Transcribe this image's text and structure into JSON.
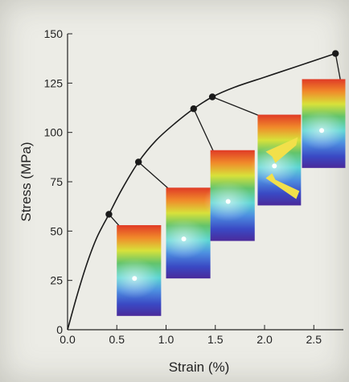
{
  "chart_data": {
    "type": "line",
    "title": "",
    "xlabel": "Strain (%)",
    "ylabel": "Stress (MPa)",
    "xlim": [
      0,
      2.8
    ],
    "ylim": [
      0,
      150
    ],
    "x_ticks": [
      "0.0",
      "0.5",
      "1.0",
      "1.5",
      "2.0",
      "2.5"
    ],
    "y_ticks": [
      "0",
      "25",
      "50",
      "75",
      "100",
      "125",
      "150"
    ],
    "grid": false,
    "series": [
      {
        "x": [
          0,
          0.1,
          0.2,
          0.3,
          0.42,
          0.55,
          0.72,
          0.9,
          1.1,
          1.28,
          1.47,
          1.7,
          2.0,
          2.3,
          2.72
        ],
        "y": [
          0,
          18,
          34,
          47,
          58.5,
          71,
          85,
          96,
          105,
          112,
          118,
          123,
          128,
          133,
          140
        ]
      }
    ],
    "markers": [
      {
        "x": 0.42,
        "y": 58.5
      },
      {
        "x": 0.72,
        "y": 85
      },
      {
        "x": 1.28,
        "y": 112
      },
      {
        "x": 1.47,
        "y": 118
      },
      {
        "x": 2.72,
        "y": 140
      }
    ],
    "insets": [
      {
        "x_range": [
          0.5,
          0.95
        ],
        "y_range": [
          7,
          53
        ],
        "white_dot": [
          0.68,
          26
        ],
        "arrows": false
      },
      {
        "x_range": [
          1.0,
          1.45
        ],
        "y_range": [
          26,
          72
        ],
        "white_dot": [
          1.18,
          46
        ],
        "arrows": false
      },
      {
        "x_range": [
          1.45,
          1.9
        ],
        "y_range": [
          45,
          91
        ],
        "white_dot": [
          1.63,
          65
        ],
        "arrows": false
      },
      {
        "x_range": [
          1.93,
          2.37
        ],
        "y_range": [
          63,
          109
        ],
        "white_dot": [
          2.1,
          83
        ],
        "arrows": true
      },
      {
        "x_range": [
          2.38,
          2.82
        ],
        "y_range": [
          82,
          127
        ],
        "white_dot": [
          2.58,
          101
        ],
        "arrows": false
      }
    ],
    "colors": {
      "line": "#1a1a1a",
      "marker": "#1a1a1a",
      "arrow": "#f2e04a",
      "gradient_top": "#e24a2c",
      "gradient_mid": "#5cc16a",
      "gradient_bottom": "#3a2fa0"
    }
  }
}
